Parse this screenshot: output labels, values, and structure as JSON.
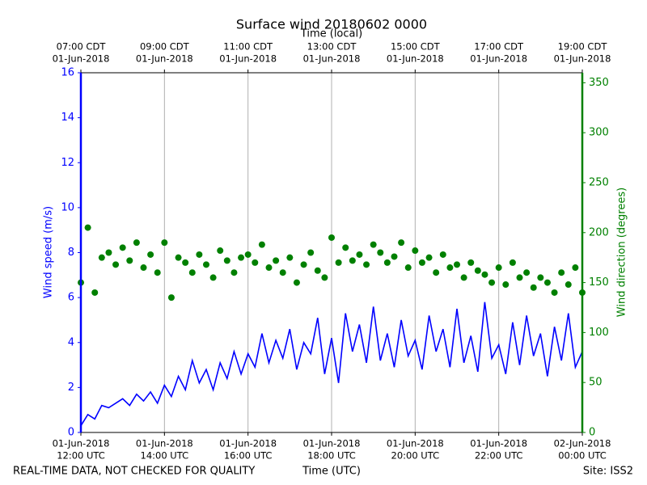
{
  "chart_data": {
    "type": "line",
    "title": "Surface wind 20180602 0000",
    "xlabel": "Time (UTC)",
    "x2label": "Time (local)",
    "ylabel": "Wind speed (m/s)",
    "y2label": "Wind direction (degrees)",
    "footnote": "REAL-TIME DATA, NOT CHECKED FOR QUALITY",
    "site": "Site: ISS2",
    "grid": true,
    "x": [
      "2018-06-01 12:00",
      "2018-06-01 12:10",
      "2018-06-01 12:20",
      "2018-06-01 12:30",
      "2018-06-01 12:40",
      "2018-06-01 12:50",
      "2018-06-01 13:00",
      "2018-06-01 13:10",
      "2018-06-01 13:20",
      "2018-06-01 13:30",
      "2018-06-01 13:40",
      "2018-06-01 13:50",
      "2018-06-01 14:00",
      "2018-06-01 14:10",
      "2018-06-01 14:20",
      "2018-06-01 14:30",
      "2018-06-01 14:40",
      "2018-06-01 14:50",
      "2018-06-01 15:00",
      "2018-06-01 15:10",
      "2018-06-01 15:20",
      "2018-06-01 15:30",
      "2018-06-01 15:40",
      "2018-06-01 15:50",
      "2018-06-01 16:00",
      "2018-06-01 16:10",
      "2018-06-01 16:20",
      "2018-06-01 16:30",
      "2018-06-01 16:40",
      "2018-06-01 16:50",
      "2018-06-01 17:00",
      "2018-06-01 17:10",
      "2018-06-01 17:20",
      "2018-06-01 17:30",
      "2018-06-01 17:40",
      "2018-06-01 17:50",
      "2018-06-01 18:00",
      "2018-06-01 18:10",
      "2018-06-01 18:20",
      "2018-06-01 18:30",
      "2018-06-01 18:40",
      "2018-06-01 18:50",
      "2018-06-01 19:00",
      "2018-06-01 19:10",
      "2018-06-01 19:20",
      "2018-06-01 19:30",
      "2018-06-01 19:40",
      "2018-06-01 19:50",
      "2018-06-01 20:00",
      "2018-06-01 20:10",
      "2018-06-01 20:20",
      "2018-06-01 20:30",
      "2018-06-01 20:40",
      "2018-06-01 20:50",
      "2018-06-01 21:00",
      "2018-06-01 21:10",
      "2018-06-01 21:20",
      "2018-06-01 21:30",
      "2018-06-01 21:40",
      "2018-06-01 21:50",
      "2018-06-01 22:00",
      "2018-06-01 22:10",
      "2018-06-01 22:20",
      "2018-06-01 22:30",
      "2018-06-01 22:40",
      "2018-06-01 22:50",
      "2018-06-01 23:00",
      "2018-06-01 23:10",
      "2018-06-01 23:20",
      "2018-06-01 23:30",
      "2018-06-01 23:40",
      "2018-06-01 23:50",
      "2018-06-02 00:00"
    ],
    "xlim": [
      "2018-06-01 12:00",
      "2018-06-02 00:00"
    ],
    "xticks": [
      {
        "value": "2018-06-01 12:00",
        "label": [
          "01-Jun-2018",
          "12:00 UTC"
        ]
      },
      {
        "value": "2018-06-01 14:00",
        "label": [
          "01-Jun-2018",
          "14:00 UTC"
        ]
      },
      {
        "value": "2018-06-01 16:00",
        "label": [
          "01-Jun-2018",
          "16:00 UTC"
        ]
      },
      {
        "value": "2018-06-01 18:00",
        "label": [
          "01-Jun-2018",
          "18:00 UTC"
        ]
      },
      {
        "value": "2018-06-01 20:00",
        "label": [
          "01-Jun-2018",
          "20:00 UTC"
        ]
      },
      {
        "value": "2018-06-01 22:00",
        "label": [
          "01-Jun-2018",
          "22:00 UTC"
        ]
      },
      {
        "value": "2018-06-02 00:00",
        "label": [
          "02-Jun-2018",
          "00:00 UTC"
        ]
      }
    ],
    "x2ticks": [
      {
        "value": "2018-06-01 12:00",
        "label": [
          "07:00 CDT",
          "01-Jun-2018"
        ]
      },
      {
        "value": "2018-06-01 14:00",
        "label": [
          "09:00 CDT",
          "01-Jun-2018"
        ]
      },
      {
        "value": "2018-06-01 16:00",
        "label": [
          "11:00 CDT",
          "01-Jun-2018"
        ]
      },
      {
        "value": "2018-06-01 18:00",
        "label": [
          "13:00 CDT",
          "01-Jun-2018"
        ]
      },
      {
        "value": "2018-06-01 20:00",
        "label": [
          "15:00 CDT",
          "01-Jun-2018"
        ]
      },
      {
        "value": "2018-06-01 22:00",
        "label": [
          "17:00 CDT",
          "01-Jun-2018"
        ]
      },
      {
        "value": "2018-06-02 00:00",
        "label": [
          "19:00 CDT",
          "01-Jun-2018"
        ]
      }
    ],
    "ylim": [
      0,
      16
    ],
    "yticks": [
      0,
      2,
      4,
      6,
      8,
      10,
      12,
      14,
      16
    ],
    "y2lim": [
      0,
      360
    ],
    "y2ticks": [
      0,
      50,
      100,
      150,
      200,
      250,
      300,
      350
    ],
    "series": [
      {
        "type": "line",
        "color": "#0000ff",
        "values": [
          0.3,
          0.8,
          0.6,
          1.2,
          1.1,
          1.3,
          1.5,
          1.2,
          1.7,
          1.4,
          1.8,
          1.3,
          2.1,
          1.6,
          2.5,
          1.9,
          3.2,
          2.2,
          2.8,
          1.9,
          3.1,
          2.4,
          3.6,
          2.6,
          3.5,
          2.9,
          4.4,
          3.1,
          4.1,
          3.3,
          4.6,
          2.8,
          4.0,
          3.5,
          5.1,
          2.6,
          4.2,
          2.2,
          5.3,
          3.6,
          4.8,
          3.1,
          5.6,
          3.2,
          4.4,
          2.9,
          5.0,
          3.4,
          4.1,
          2.8,
          5.2,
          3.6,
          4.6,
          2.9,
          5.5,
          3.1,
          4.3,
          2.7,
          5.8,
          3.3,
          3.9,
          2.6,
          4.9,
          3.0,
          5.2,
          3.4,
          4.4,
          2.5,
          4.7,
          3.2,
          5.3,
          2.9,
          3.6
        ]
      },
      {
        "type": "scatter",
        "axis": "y2",
        "color": "#008000",
        "values": [
          150,
          205,
          140,
          175,
          180,
          168,
          185,
          172,
          190,
          165,
          178,
          160,
          190,
          135,
          175,
          170,
          160,
          178,
          168,
          155,
          182,
          172,
          160,
          175,
          178,
          170,
          188,
          165,
          172,
          160,
          175,
          150,
          168,
          180,
          162,
          155,
          195,
          170,
          185,
          172,
          178,
          168,
          188,
          180,
          170,
          176,
          190,
          165,
          182,
          170,
          175,
          160,
          178,
          165,
          168,
          155,
          170,
          162,
          158,
          150,
          165,
          148,
          170,
          155,
          160,
          145,
          155,
          150,
          140,
          160,
          148,
          165,
          140
        ]
      }
    ]
  }
}
